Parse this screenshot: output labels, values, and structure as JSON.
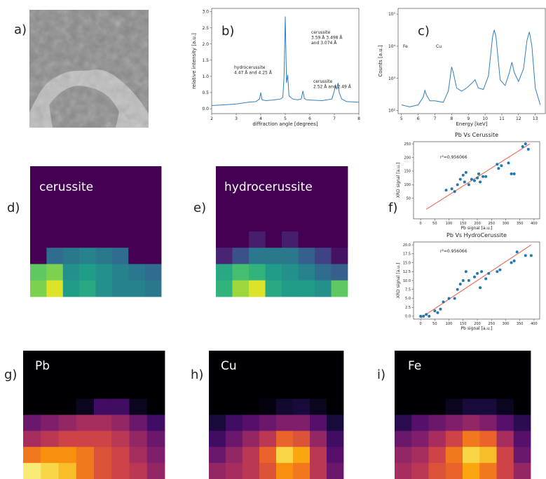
{
  "chart_data": [
    {
      "type": "image",
      "label": "a)"
    },
    {
      "type": "line",
      "label": "b)",
      "xlabel": "diffraction angle [degrees]",
      "ylabel": "relative intensity [a.u.]",
      "color": "#2f7fbf",
      "x": [
        2,
        2.5,
        3,
        3.5,
        3.8,
        3.95,
        4,
        4.05,
        4.2,
        4.5,
        4.8,
        4.9,
        4.95,
        5,
        5.05,
        5.1,
        5.15,
        5.3,
        5.5,
        5.65,
        5.72,
        5.78,
        5.85,
        6,
        6.5,
        6.9,
        7,
        7.05,
        7.1,
        7.15,
        7.2,
        7.3,
        7.5,
        8
      ],
      "values": [
        0.1,
        0.12,
        0.15,
        0.2,
        0.22,
        0.3,
        0.5,
        0.28,
        0.25,
        0.27,
        0.3,
        0.35,
        1.0,
        2.85,
        0.8,
        1.05,
        0.4,
        0.3,
        0.28,
        0.3,
        0.55,
        0.32,
        0.28,
        0.27,
        0.25,
        0.3,
        0.55,
        0.72,
        0.6,
        0.8,
        0.5,
        0.3,
        0.22,
        0.2
      ],
      "xlim": [
        2,
        8
      ],
      "xticks": [
        2,
        3,
        4,
        5,
        6,
        7,
        8
      ],
      "ylim": [
        -0.15,
        3.1
      ],
      "yticks": [
        {
          "value": 0,
          "label": "0.0"
        },
        {
          "value": 0.5,
          "label": "0.5"
        },
        {
          "value": 1,
          "label": "1.0"
        },
        {
          "value": 1.5,
          "label": "1.5"
        },
        {
          "value": 2,
          "label": "2.0"
        },
        {
          "value": 2.5,
          "label": "2.5"
        },
        {
          "value": 3,
          "label": "3.0"
        }
      ],
      "annotations": [
        [
          "hydrocerussite",
          "4.47 Å and 4.25 Å"
        ],
        [
          "cerussite",
          "3.59 Å  3.498 Å",
          "and 3.074 Å"
        ],
        [
          "cerussite",
          "2.52 Å and 2.49 Å"
        ]
      ]
    },
    {
      "type": "line",
      "label": "c)",
      "xlabel": "Energy [keV]",
      "ylabel": "Counts [a.u.]",
      "color": "#2f7fbf",
      "log": true,
      "x": [
        5,
        5.5,
        6,
        6.3,
        6.4,
        6.5,
        6.7,
        7,
        7.5,
        7.8,
        8,
        8.1,
        8.3,
        8.6,
        8.9,
        9.2,
        9.4,
        9.6,
        9.9,
        10.2,
        10.45,
        10.55,
        10.65,
        10.9,
        11.2,
        11.45,
        11.6,
        11.75,
        12,
        12.3,
        12.5,
        12.65,
        12.8,
        13,
        13.3
      ],
      "values": [
        150,
        130,
        150,
        260,
        420,
        300,
        200,
        200,
        180,
        400,
        2270,
        1500,
        500,
        400,
        500,
        700,
        900,
        500,
        450,
        1200,
        20000,
        32000,
        20000,
        900,
        600,
        1500,
        3200,
        1500,
        800,
        2000,
        15000,
        28000,
        10000,
        500,
        150
      ],
      "xlim": [
        4.8,
        13.6
      ],
      "xticks": [
        5,
        6,
        7,
        8,
        9,
        10,
        11,
        12,
        13
      ],
      "ylim": [
        80,
        150000
      ],
      "yticks": [
        {
          "value": 100,
          "label": "10²"
        },
        {
          "value": 1000,
          "label": "10³"
        },
        {
          "value": 10000,
          "label": "10⁴"
        },
        {
          "value": 100000,
          "label": "10⁵"
        }
      ],
      "annotations": [
        [
          "Fe"
        ],
        [
          "Cu"
        ]
      ]
    },
    {
      "type": "heatmap",
      "label": "d)",
      "title": "cerussite",
      "colormap": "viridis",
      "z": [
        [
          0,
          0,
          0,
          0,
          0,
          0,
          0,
          0
        ],
        [
          0,
          0,
          0,
          0,
          0,
          0,
          0,
          0
        ],
        [
          0,
          0,
          0,
          0,
          0,
          0,
          0,
          0
        ],
        [
          0,
          0,
          0,
          0,
          0,
          0,
          0,
          0
        ],
        [
          0,
          0,
          0,
          0,
          0,
          0,
          0,
          0
        ],
        [
          0,
          0.35,
          0.4,
          0.45,
          0.4,
          0.35,
          0,
          0
        ],
        [
          0.75,
          0.8,
          0.5,
          0.55,
          0.5,
          0.45,
          0.4,
          0.35
        ],
        [
          0.8,
          0.95,
          0.55,
          0.6,
          0.5,
          0.45,
          0.45,
          0.4
        ]
      ]
    },
    {
      "type": "heatmap",
      "label": "e)",
      "title": "hydrocerussite",
      "colormap": "viridis",
      "z": [
        [
          0,
          0,
          0,
          0,
          0,
          0,
          0,
          0
        ],
        [
          0,
          0,
          0,
          0,
          0,
          0,
          0,
          0
        ],
        [
          0,
          0,
          0,
          0,
          0,
          0,
          0,
          0
        ],
        [
          0,
          0,
          0,
          0,
          0,
          0,
          0,
          0
        ],
        [
          0,
          0,
          0.08,
          0,
          0.08,
          0,
          0,
          0
        ],
        [
          0.1,
          0.25,
          0.4,
          0.4,
          0.4,
          0.3,
          0.2,
          0.05
        ],
        [
          0.6,
          0.7,
          0.65,
          0.55,
          0.5,
          0.45,
          0.35,
          0.3
        ],
        [
          0.65,
          0.85,
          0.95,
          0.6,
          0.55,
          0.55,
          0.5,
          0.75
        ]
      ]
    },
    {
      "type": "scatter",
      "label": "f)",
      "title": "Pb Vs Cerussite",
      "xlabel": "Pb signal [a.u.]",
      "ylabel": "XRD signal [a.u.]",
      "annotation": "r²=0.956066",
      "color": "#1f77b4",
      "x": [
        90,
        110,
        120,
        130,
        140,
        150,
        155,
        160,
        170,
        180,
        190,
        200,
        205,
        210,
        220,
        230,
        270,
        275,
        285,
        310,
        320,
        330,
        360,
        370,
        380
      ],
      "values": [
        80,
        85,
        75,
        100,
        120,
        135,
        110,
        145,
        100,
        120,
        115,
        125,
        140,
        110,
        130,
        130,
        175,
        160,
        170,
        180,
        140,
        140,
        240,
        250,
        230
      ],
      "fit": {
        "color": "#ec7063",
        "x": [
          20,
          385
        ],
        "y": [
          10,
          250
        ]
      },
      "xlim": [
        -25,
        420
      ],
      "xticks": [
        0,
        50,
        100,
        150,
        200,
        250,
        300,
        350,
        400
      ],
      "ylim": [
        -25,
        258
      ],
      "yticks": [
        50,
        100,
        150,
        200,
        250
      ]
    },
    {
      "type": "scatter",
      "title": "Pb Vs HydroCerussite",
      "xlabel": "Pb signal [a.u.]",
      "ylabel": "XRD signal [a.u.]",
      "annotation": "r²=0.956066",
      "color": "#1f77b4",
      "x": [
        0,
        10,
        20,
        30,
        50,
        60,
        70,
        80,
        100,
        120,
        130,
        140,
        150,
        160,
        170,
        190,
        200,
        210,
        215,
        230,
        240,
        270,
        280,
        320,
        330,
        340,
        370,
        390
      ],
      "values": [
        0,
        0,
        0.5,
        0,
        1.5,
        1,
        2,
        4,
        5,
        5,
        7.5,
        9,
        10,
        12.5,
        10,
        11,
        12,
        8,
        12.5,
        10.5,
        12,
        12.5,
        13,
        15,
        15.5,
        18,
        17,
        17
      ],
      "fit": {
        "color": "#ec7063",
        "x": [
          0,
          390
        ],
        "y": [
          -0.5,
          20
        ]
      },
      "xlim": [
        -25,
        420
      ],
      "xticks": [
        0,
        50,
        100,
        150,
        200,
        250,
        300,
        350,
        400
      ],
      "ylim": [
        -0.8,
        20.8
      ],
      "yticks": [
        {
          "value": 0,
          "label": "0.0"
        },
        2.5,
        {
          "value": 5,
          "label": "5.0"
        },
        7.5,
        {
          "value": 10,
          "label": "10.0"
        },
        12.5,
        {
          "value": 15,
          "label": "15.0"
        },
        17.5,
        {
          "value": 20,
          "label": "20.0"
        }
      ]
    },
    {
      "type": "heatmap",
      "label": "g)",
      "title": "Pb",
      "colormap": "inferno",
      "z": [
        [
          0,
          0,
          0,
          0,
          0,
          0,
          0,
          0
        ],
        [
          0,
          0,
          0,
          0,
          0,
          0,
          0,
          0
        ],
        [
          0,
          0,
          0,
          0,
          0,
          0,
          0,
          0
        ],
        [
          0,
          0,
          0,
          0.05,
          0.2,
          0.2,
          0.05,
          0
        ],
        [
          0.3,
          0.35,
          0.4,
          0.45,
          0.45,
          0.4,
          0.3,
          0.2
        ],
        [
          0.45,
          0.5,
          0.55,
          0.55,
          0.55,
          0.5,
          0.4,
          0.3
        ],
        [
          0.7,
          0.75,
          0.75,
          0.7,
          0.6,
          0.55,
          0.45,
          0.35
        ],
        [
          0.95,
          0.9,
          0.85,
          0.7,
          0.6,
          0.55,
          0.5,
          0.4
        ]
      ]
    },
    {
      "type": "heatmap",
      "label": "h)",
      "title": "Cu",
      "colormap": "inferno",
      "z": [
        [
          0,
          0,
          0,
          0,
          0,
          0,
          0,
          0
        ],
        [
          0,
          0,
          0,
          0,
          0,
          0,
          0,
          0
        ],
        [
          0,
          0,
          0,
          0,
          0,
          0,
          0,
          0
        ],
        [
          0,
          0,
          0,
          0.02,
          0.08,
          0.1,
          0.05,
          0
        ],
        [
          0.1,
          0.2,
          0.25,
          0.3,
          0.35,
          0.35,
          0.25,
          0.1
        ],
        [
          0.2,
          0.3,
          0.4,
          0.5,
          0.65,
          0.6,
          0.4,
          0.2
        ],
        [
          0.3,
          0.4,
          0.5,
          0.65,
          0.9,
          0.8,
          0.5,
          0.25
        ],
        [
          0.4,
          0.45,
          0.5,
          0.6,
          0.75,
          0.7,
          0.5,
          0.3
        ]
      ]
    },
    {
      "type": "heatmap",
      "label": "i)",
      "title": "Fe",
      "colormap": "inferno",
      "z": [
        [
          0,
          0,
          0,
          0,
          0,
          0,
          0,
          0
        ],
        [
          0,
          0,
          0,
          0,
          0,
          0,
          0,
          0
        ],
        [
          0,
          0,
          0,
          0,
          0,
          0,
          0,
          0
        ],
        [
          0,
          0,
          0,
          0.05,
          0.1,
          0.1,
          0.05,
          0
        ],
        [
          0.15,
          0.25,
          0.3,
          0.35,
          0.4,
          0.35,
          0.25,
          0.15
        ],
        [
          0.3,
          0.35,
          0.45,
          0.55,
          0.7,
          0.65,
          0.45,
          0.25
        ],
        [
          0.4,
          0.45,
          0.55,
          0.7,
          0.9,
          0.85,
          0.55,
          0.3
        ],
        [
          0.45,
          0.5,
          0.6,
          0.65,
          0.8,
          0.7,
          0.55,
          0.4
        ]
      ]
    }
  ]
}
